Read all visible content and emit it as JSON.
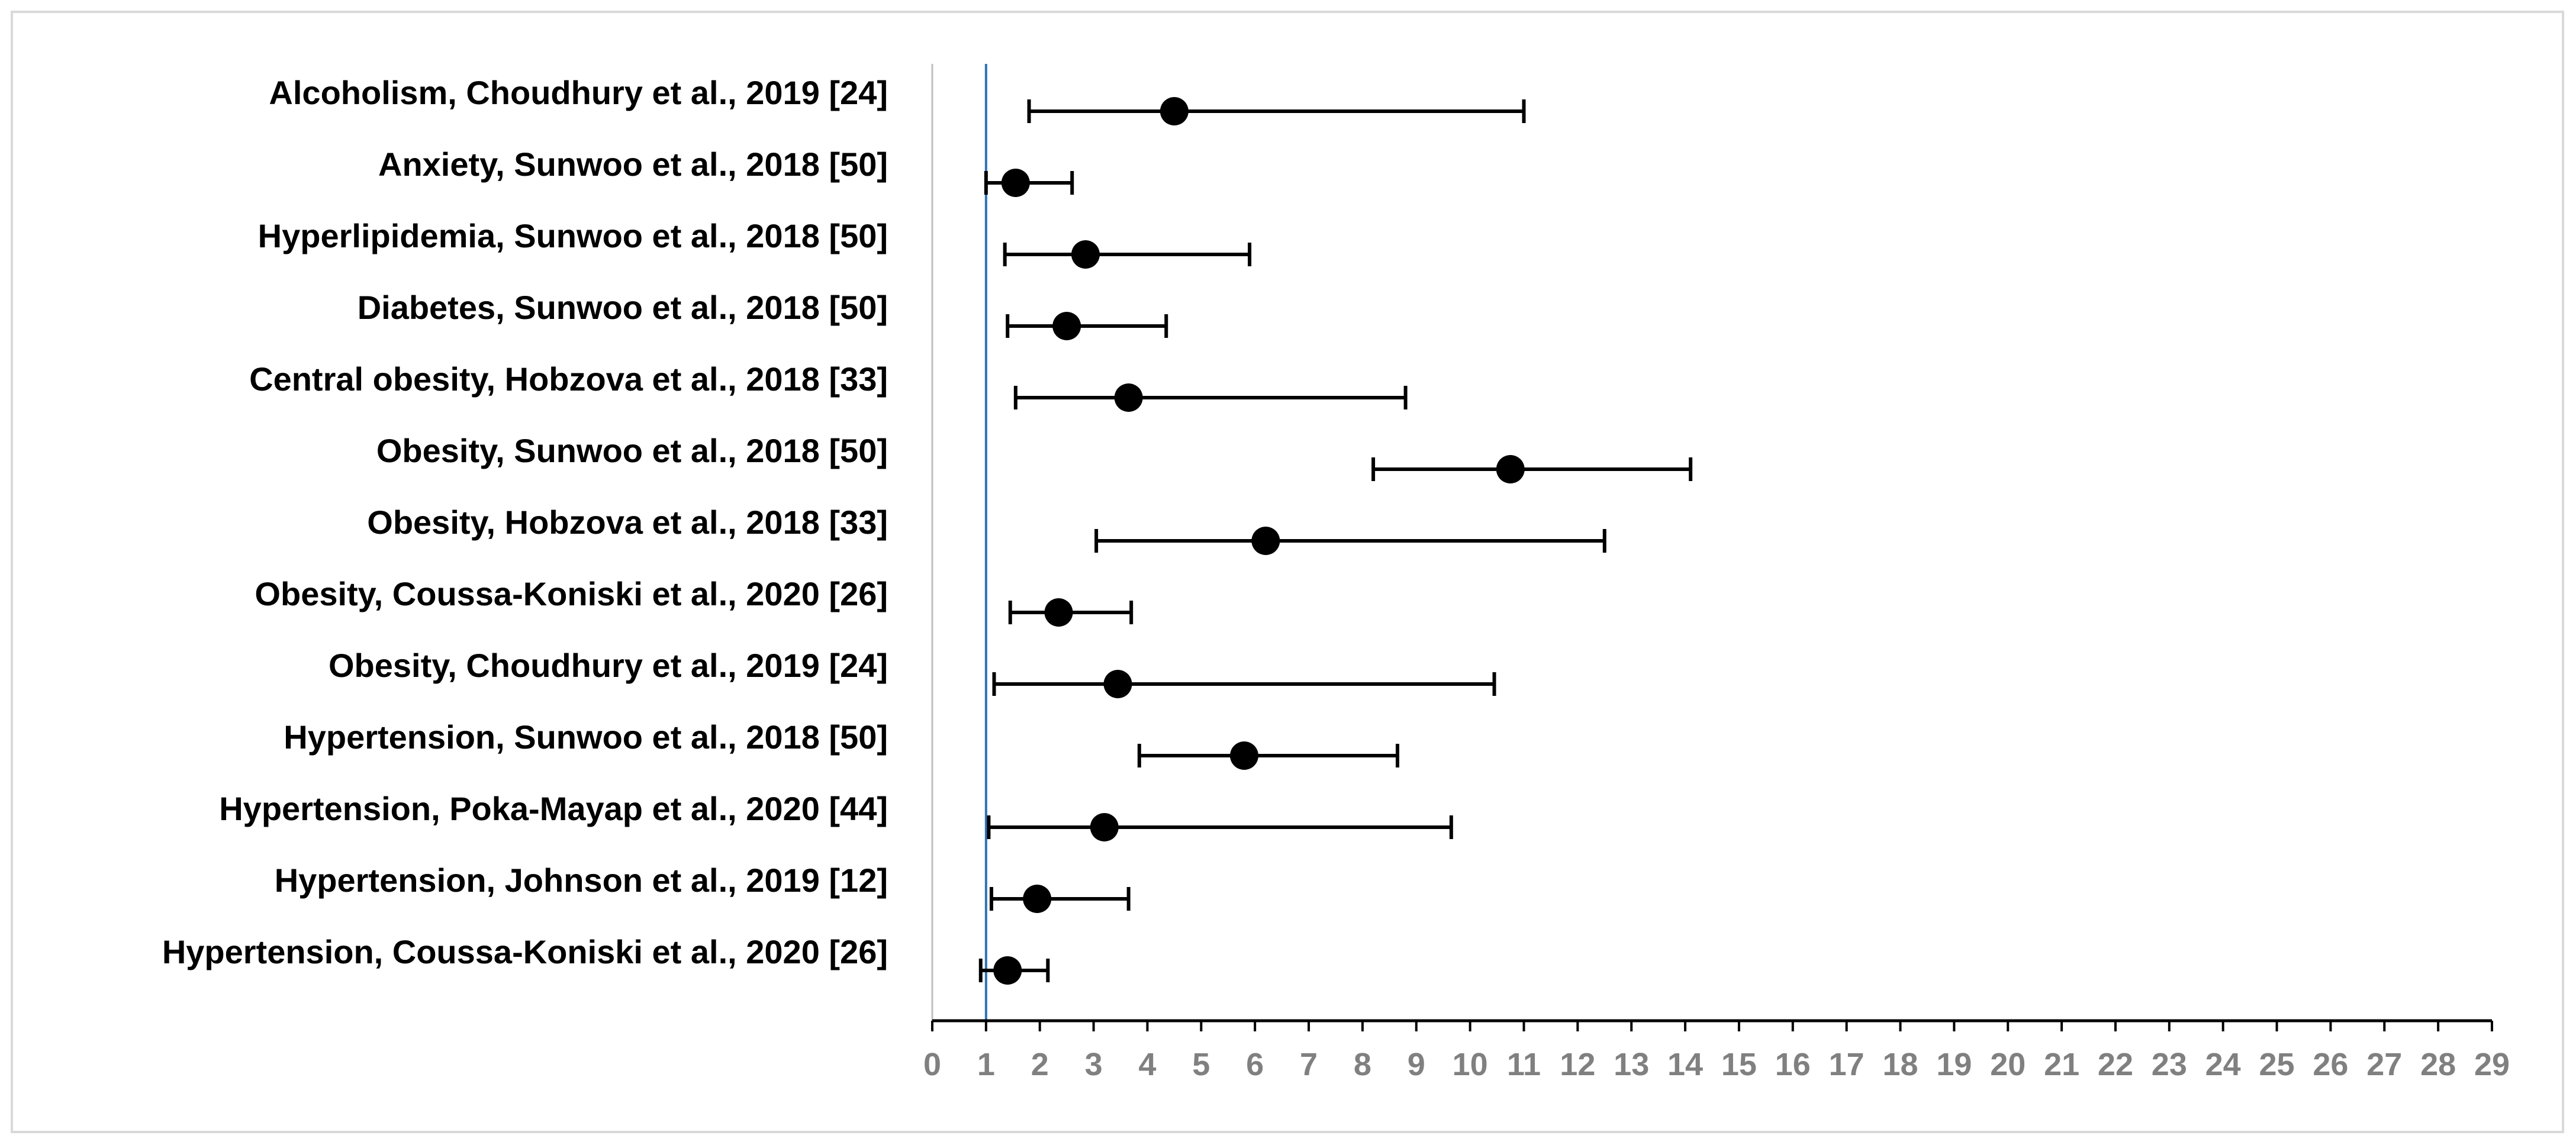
{
  "chart_data": {
    "type": "forest",
    "orientation": "horizontal",
    "xlim": [
      0,
      29
    ],
    "x_ticks": [
      0,
      1,
      2,
      3,
      4,
      5,
      6,
      7,
      8,
      9,
      10,
      11,
      12,
      13,
      14,
      15,
      16,
      17,
      18,
      19,
      20,
      21,
      22,
      23,
      24,
      25,
      26,
      27,
      28,
      29
    ],
    "reference_line_x": 1,
    "colors": {
      "marker": "#000000",
      "reference_line": "#2e75b6",
      "axis": "#000000",
      "tick_label": "#808080",
      "frame": "#d9d9d9"
    },
    "rows": [
      {
        "label": "Alcoholism, Choudhury et al., 2019 [24]",
        "estimate": 4.5,
        "lower": 1.8,
        "upper": 11.0
      },
      {
        "label": "Anxiety, Sunwoo et al., 2018 [50]",
        "estimate": 1.55,
        "lower": 1.0,
        "upper": 2.6
      },
      {
        "label": "Hyperlipidemia, Sunwoo et al., 2018 [50]",
        "estimate": 2.85,
        "lower": 1.35,
        "upper": 5.9
      },
      {
        "label": "Diabetes, Sunwoo et al., 2018 [50]",
        "estimate": 2.5,
        "lower": 1.4,
        "upper": 4.35
      },
      {
        "label": "Central obesity, Hobzova et al., 2018 [33]",
        "estimate": 3.65,
        "lower": 1.55,
        "upper": 8.8
      },
      {
        "label": "Obesity, Sunwoo et al., 2018 [50]",
        "estimate": 10.75,
        "lower": 8.2,
        "upper": 14.1
      },
      {
        "label": "Obesity, Hobzova et al., 2018 [33]",
        "estimate": 6.2,
        "lower": 3.05,
        "upper": 12.5
      },
      {
        "label": "Obesity, Coussa-Koniski et al., 2020 [26]",
        "estimate": 2.35,
        "lower": 1.45,
        "upper": 3.7
      },
      {
        "label": "Obesity, Choudhury et al., 2019 [24]",
        "estimate": 3.45,
        "lower": 1.15,
        "upper": 10.45
      },
      {
        "label": "Hypertension, Sunwoo et al., 2018 [50]",
        "estimate": 5.8,
        "lower": 3.85,
        "upper": 8.65
      },
      {
        "label": "Hypertension, Poka-Mayap et al., 2020 [44]",
        "estimate": 3.2,
        "lower": 1.05,
        "upper": 9.65
      },
      {
        "label": "Hypertension, Johnson et al., 2019 [12]",
        "estimate": 1.95,
        "lower": 1.1,
        "upper": 3.65
      },
      {
        "label": "Hypertension, Coussa-Koniski et al., 2020 [26]",
        "estimate": 1.4,
        "lower": 0.9,
        "upper": 2.15
      }
    ]
  }
}
